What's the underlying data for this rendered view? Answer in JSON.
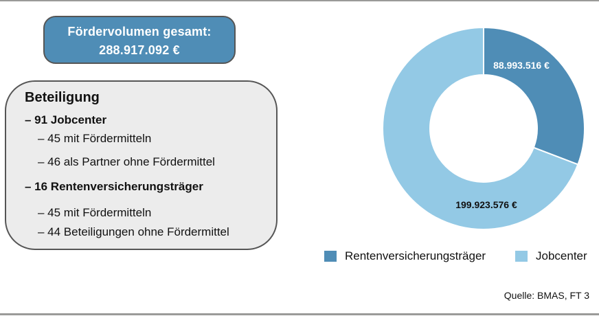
{
  "total": {
    "label": "Fördervolumen gesamt:",
    "value": "288.917.092 €"
  },
  "participation": {
    "title": "Beteiligung",
    "groups": [
      {
        "label": "– 91 Jobcenter",
        "items": [
          "– 45 mit Fördermitteln",
          "– 46 als Partner ohne Fördermittel"
        ]
      },
      {
        "label": "– 16 Rentenversicherungsträger",
        "items": [
          "– 45 mit Fördermitteln",
          "– 44 Beteiligungen ohne Fördermittel"
        ]
      }
    ]
  },
  "colors": {
    "rentenversicherung": "#4f8db6",
    "jobcenter": "#93c9e5",
    "total_box": "#4f8db6",
    "info_box": "#ececec"
  },
  "chart_data": {
    "type": "pie",
    "variant": "donut",
    "title": "",
    "categories": [
      "Rentenversicherungsträger",
      "Jobcenter"
    ],
    "values": [
      88993516,
      199923576
    ],
    "labels": [
      "88.993.516 €",
      "199.923.576 €"
    ],
    "colors": [
      "#4f8db6",
      "#93c9e5"
    ],
    "total": 288917092,
    "legend_position": "bottom"
  },
  "legend": [
    {
      "label": "Rentenversicherungsträger",
      "color": "#4f8db6"
    },
    {
      "label": "Jobcenter",
      "color": "#93c9e5"
    }
  ],
  "source": "Quelle: BMAS, FT 3"
}
